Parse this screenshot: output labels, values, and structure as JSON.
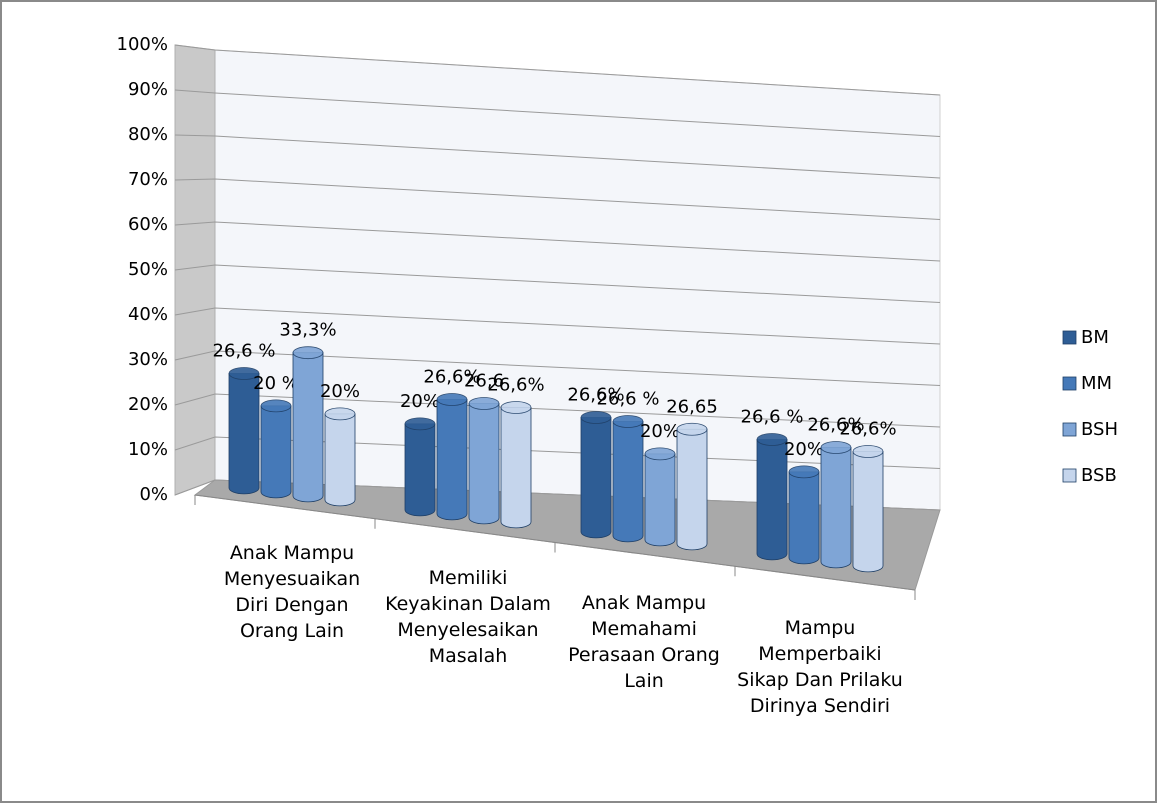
{
  "chart_data": {
    "type": "bar",
    "categories": [
      "Anak Mampu Menyesuaikan Diri Dengan Orang Lain",
      "Memiliki Keyakinan Dalam Menyelesaikan Masalah",
      "Anak Mampu Memahami Perasaan Orang Lain",
      "Mampu Memperbaiki Sikap Dan Prilaku Dirinya Sendiri"
    ],
    "series": [
      {
        "name": "BM",
        "color": "#2e5d95",
        "values": [
          26.6,
          20,
          26.6,
          26.6
        ],
        "value_labels": [
          "26,6 %",
          "20%",
          "26,6%",
          "26,6 %"
        ]
      },
      {
        "name": "MM",
        "color": "#4579b8",
        "values": [
          20,
          26.6,
          26.6,
          20
        ],
        "value_labels": [
          "20 %",
          "26,6%",
          "26,6 %",
          "20%"
        ]
      },
      {
        "name": "BSH",
        "color": "#7fa5d6",
        "values": [
          33.3,
          26.6,
          20,
          26.6
        ],
        "value_labels": [
          "33,3%",
          "26,6",
          "20%",
          "26,6%"
        ]
      },
      {
        "name": "BSB",
        "color": "#c5d5ec",
        "values": [
          20,
          26.6,
          26.65,
          26.6
        ],
        "value_labels": [
          "20%",
          "26,6%",
          "26,65",
          "26,6%"
        ]
      }
    ],
    "ylim": [
      0,
      100
    ],
    "yticks": [
      {
        "value": 0,
        "label": "0%"
      },
      {
        "value": 10,
        "label": "10%"
      },
      {
        "value": 20,
        "label": "20%"
      },
      {
        "value": 30,
        "label": "30%"
      },
      {
        "value": 40,
        "label": "40%"
      },
      {
        "value": 50,
        "label": "50%"
      },
      {
        "value": 60,
        "label": "60%"
      },
      {
        "value": 70,
        "label": "70%"
      },
      {
        "value": 80,
        "label": "80%"
      },
      {
        "value": 90,
        "label": "90%"
      },
      {
        "value": 100,
        "label": "100%"
      }
    ],
    "grid": true,
    "legend": "right"
  }
}
